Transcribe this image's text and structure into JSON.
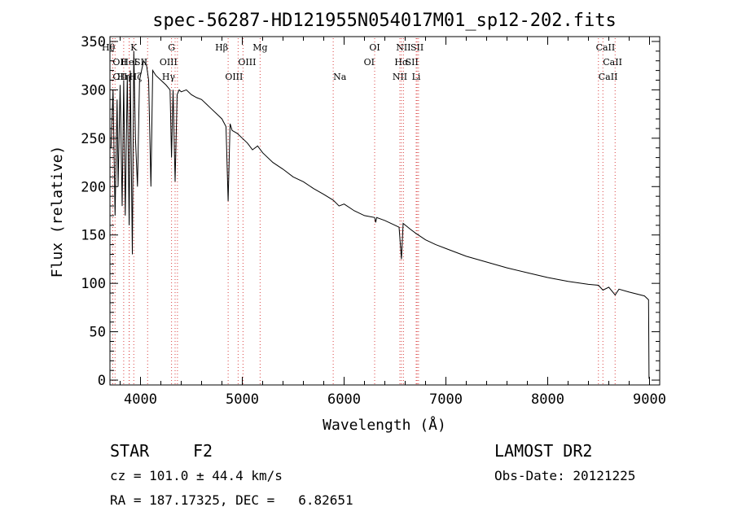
{
  "chart_data": {
    "type": "line",
    "title": "spec-56287-HD121955N054017M01_sp12-202.fits",
    "xlabel": "Wavelength (Å)",
    "ylabel": "Flux (relative)",
    "xlim": [
      3700,
      9100
    ],
    "ylim": [
      -5,
      355
    ],
    "xticks": [
      4000,
      5000,
      6000,
      7000,
      8000,
      9000
    ],
    "xtick_labels": [
      "4000",
      "5000",
      "6000",
      "7000",
      "8000",
      "9000"
    ],
    "yticks": [
      0,
      50,
      100,
      150,
      200,
      250,
      300,
      350
    ],
    "ytick_labels": [
      "0",
      "50",
      "100",
      "150",
      "200",
      "250",
      "300",
      "350"
    ],
    "series": [
      {
        "name": "spectrum",
        "x": [
          3710,
          3730,
          3750,
          3770,
          3780,
          3800,
          3820,
          3835,
          3850,
          3870,
          3889,
          3900,
          3920,
          3934,
          3950,
          3970,
          3990,
          4010,
          4030,
          4060,
          4080,
          4102,
          4120,
          4150,
          4200,
          4250,
          4290,
          4305,
          4320,
          4340,
          4360,
          4380,
          4400,
          4450,
          4500,
          4550,
          4600,
          4650,
          4700,
          4750,
          4800,
          4840,
          4861,
          4880,
          4900,
          4950,
          5000,
          5050,
          5100,
          5150,
          5200,
          5300,
          5400,
          5500,
          5600,
          5700,
          5800,
          5893,
          5950,
          6000,
          6100,
          6200,
          6300,
          6310,
          6320,
          6400,
          6500,
          6540,
          6563,
          6580,
          6650,
          6700,
          6800,
          6900,
          7000,
          7200,
          7400,
          7600,
          7800,
          8000,
          8200,
          8400,
          8498,
          8542,
          8600,
          8662,
          8700,
          8800,
          8950,
          8990,
          8995,
          9000
        ],
        "y": [
          240,
          300,
          170,
          290,
          200,
          305,
          180,
          310,
          170,
          315,
          160,
          320,
          130,
          340,
          250,
          200,
          310,
          320,
          330,
          325,
          310,
          200,
          320,
          315,
          310,
          305,
          300,
          230,
          300,
          205,
          295,
          300,
          298,
          300,
          295,
          292,
          290,
          285,
          280,
          275,
          270,
          262,
          185,
          265,
          258,
          255,
          250,
          245,
          238,
          242,
          235,
          225,
          218,
          210,
          205,
          198,
          192,
          186,
          180,
          182,
          175,
          170,
          168,
          163,
          168,
          165,
          160,
          158,
          125,
          162,
          156,
          152,
          145,
          140,
          136,
          128,
          122,
          116,
          111,
          106,
          102,
          99,
          98,
          93,
          96,
          88,
          94,
          91,
          87,
          83,
          2,
          1
        ]
      }
    ],
    "spectral_lines": [
      {
        "label": "Hθ",
        "x": 3750,
        "row": 0,
        "align": "end"
      },
      {
        "label": "K",
        "x": 3934,
        "row": 0,
        "align": "middle"
      },
      {
        "label": "G",
        "x": 4305,
        "row": 0,
        "align": "middle"
      },
      {
        "label": "Hβ",
        "x": 4861,
        "row": 0,
        "align": "end"
      },
      {
        "label": "Mg",
        "x": 5175,
        "row": 0,
        "align": "middle"
      },
      {
        "label": "OI",
        "x": 6300,
        "row": 0,
        "align": "middle"
      },
      {
        "label": "NII",
        "x": 6583,
        "row": 0,
        "align": "middle"
      },
      {
        "label": "SII",
        "x": 6717,
        "row": 0,
        "align": "middle"
      },
      {
        "label": "CaII",
        "x": 8662,
        "row": 0,
        "align": "end"
      },
      {
        "label": "OII",
        "x": 3727,
        "row": 1,
        "align": "start"
      },
      {
        "label": "HeI",
        "x": 3889,
        "row": 1,
        "align": "middle"
      },
      {
        "label": "SII",
        "x": 4070,
        "row": 1,
        "align": "end"
      },
      {
        "label": "OIII",
        "x": 4363,
        "row": 1,
        "align": "end"
      },
      {
        "label": "OIII",
        "x": 4959,
        "row": 1,
        "align": "start"
      },
      {
        "label": "OI",
        "x": 6300,
        "row": 1,
        "align": "end"
      },
      {
        "label": "Hα",
        "x": 6563,
        "row": 1,
        "align": "middle"
      },
      {
        "label": "SII",
        "x": 6731,
        "row": 1,
        "align": "end"
      },
      {
        "label": "CaII",
        "x": 8542,
        "row": 1,
        "align": "start"
      },
      {
        "label": "OII",
        "x": 3727,
        "row": 2,
        "align": "start"
      },
      {
        "label": "Hη",
        "x": 3835,
        "row": 2,
        "align": "middle"
      },
      {
        "label": "Hζ",
        "x": 3889,
        "row": 2,
        "align": "start"
      },
      {
        "label": "Hγ",
        "x": 4340,
        "row": 2,
        "align": "end"
      },
      {
        "label": "OIII",
        "x": 5007,
        "row": 2,
        "align": "end"
      },
      {
        "label": "Na",
        "x": 5893,
        "row": 2,
        "align": "start"
      },
      {
        "label": "NII",
        "x": 6548,
        "row": 2,
        "align": "middle"
      },
      {
        "label": "Li",
        "x": 6708,
        "row": 2,
        "align": "middle"
      },
      {
        "label": "CaII",
        "x": 8498,
        "row": 2,
        "align": "start"
      }
    ]
  },
  "info": {
    "object_class": "STAR",
    "subclass": "F2",
    "survey": "LAMOST DR2",
    "velocity": "cz = 101.0 ± 44.4 km/s",
    "obs_date": "Obs-Date: 20121225",
    "coords": "RA = 187.17325, DEC =   6.82651"
  }
}
